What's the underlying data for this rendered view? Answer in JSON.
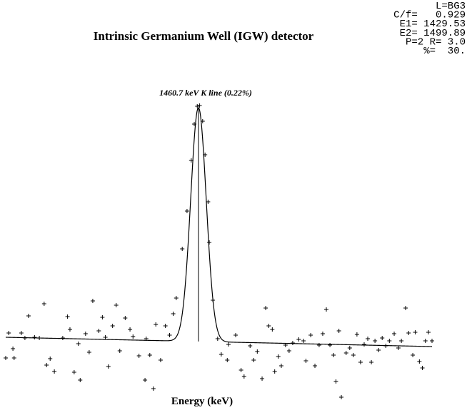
{
  "chart_data": {
    "type": "scatter",
    "title": "Intrinsic Germanium Well (IGW) detector",
    "annotation": "1460.7 keV K line (0.22%)",
    "x_label": "Energy (keV)",
    "info_lines": [
      "L=BG3",
      "C/f=   0.929",
      "E1= 1429.53",
      "E2= 1499.89",
      "P=2 R= 3.0",
      "%=  30."
    ],
    "xlim": [
      1429,
      1500
    ],
    "ylim": [
      0,
      420
    ],
    "color": "#000000",
    "x": [
      1429.5,
      1429.0,
      1430.2,
      1430.4,
      1431.6,
      1432.8,
      1432.2,
      1433.8,
      1434.6,
      1435.4,
      1435.8,
      1436.4,
      1437.1,
      1438.5,
      1439.3,
      1439.7,
      1440.4,
      1441.1,
      1441.4,
      1442.3,
      1442.9,
      1443.5,
      1444.5,
      1445.1,
      1445.6,
      1446.1,
      1446.8,
      1447.4,
      1448.0,
      1448.9,
      1449.7,
      1450.2,
      1451.2,
      1452.4,
      1452.2,
      1453.0,
      1453.6,
      1454.0,
      1454.8,
      1455.6,
      1456.3,
      1456.9,
      1457.4,
      1458.4,
      1459.2,
      1459.9,
      1460.4,
      1460.9,
      1461.3,
      1461.8,
      1462.2,
      1462.7,
      1462.9,
      1463.5,
      1464.3,
      1464.9,
      1465.9,
      1466.1,
      1467.3,
      1468.2,
      1468.7,
      1469.7,
      1470.3,
      1470.9,
      1471.7,
      1472.3,
      1472.8,
      1473.4,
      1473.8,
      1474.4,
      1474.9,
      1475.6,
      1476.2,
      1476.8,
      1477.8,
      1478.6,
      1479.0,
      1479.8,
      1480.5,
      1481.2,
      1481.8,
      1482.4,
      1483.0,
      1483.6,
      1484.0,
      1484.5,
      1484.9,
      1485.7,
      1486.3,
      1486.9,
      1487.5,
      1488.1,
      1488.7,
      1489.3,
      1489.9,
      1490.5,
      1491.1,
      1491.7,
      1492.3,
      1492.9,
      1493.7,
      1494.4,
      1494.9,
      1495.6,
      1496.1,
      1496.8,
      1497.2,
      1497.9,
      1498.4,
      1498.9,
      1499.4,
      1500.0
    ],
    "values": [
      93,
      58,
      71,
      58,
      93,
      117,
      86,
      87,
      86,
      134,
      48,
      57,
      39,
      86,
      116,
      98,
      38,
      78,
      27,
      92,
      66,
      138,
      96,
      115,
      87,
      46,
      103,
      132,
      68,
      114,
      98,
      88,
      61,
      85,
      27,
      62,
      15,
      105,
      55,
      103,
      90,
      120,
      142,
      211,
      264,
      335,
      386,
      411,
      412,
      390,
      343,
      277,
      220,
      139,
      85,
      63,
      55,
      77,
      90,
      41,
      32,
      75,
      55,
      67,
      29,
      128,
      103,
      98,
      39,
      60,
      47,
      76,
      68,
      79,
      84,
      82,
      54,
      90,
      47,
      76,
      92,
      126,
      76,
      62,
      25,
      96,
      3,
      65,
      72,
      62,
      91,
      52,
      77,
      85,
      52,
      82,
      69,
      86,
      75,
      82,
      92,
      72,
      82,
      128,
      93,
      62,
      94,
      53,
      44,
      82,
      94,
      82
    ],
    "fit": {
      "centroid": 1461.1,
      "sigma": 1.3,
      "amplitude": 328,
      "baseline": [
        87,
        74
      ]
    }
  }
}
